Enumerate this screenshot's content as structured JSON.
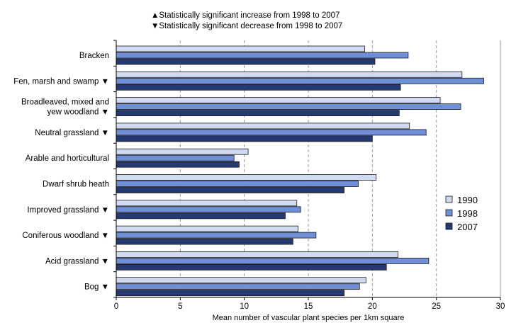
{
  "notes": {
    "increase": "▲Statistically significant increase from 1998 to 2007",
    "decrease": "▼Statistically significant decrease from 1998 to 2007"
  },
  "chart_data": {
    "type": "bar",
    "orientation": "horizontal",
    "categories": [
      [
        "Bracken"
      ],
      [
        "Fen, marsh and swamp ▼"
      ],
      [
        "Broadleaved, mixed  and",
        "yew woodland ▼"
      ],
      [
        "Neutral grassland ▼"
      ],
      [
        "Arable and horticultural"
      ],
      [
        "Dwarf shrub heath"
      ],
      [
        "Improved grassland ▼"
      ],
      [
        "Coniferous woodland ▼"
      ],
      [
        "Acid grassland ▼"
      ],
      [
        "Bog ▼"
      ]
    ],
    "series": [
      {
        "name": "1990",
        "color": "#d0daf0",
        "values": [
          19.4,
          27.0,
          25.3,
          22.9,
          10.3,
          20.3,
          14.1,
          14.2,
          22.0,
          19.5
        ]
      },
      {
        "name": "1998",
        "color": "#6f8fd6",
        "values": [
          22.8,
          28.7,
          26.9,
          24.2,
          9.2,
          18.9,
          14.4,
          15.6,
          24.4,
          19.0
        ]
      },
      {
        "name": "2007",
        "color": "#253a73",
        "values": [
          20.2,
          22.2,
          22.1,
          20.0,
          9.6,
          17.8,
          13.2,
          13.8,
          21.1,
          17.8
        ]
      }
    ],
    "xlabel": "Mean number of vascular plant species per 1km square",
    "ylabel": "",
    "xlim": [
      0,
      30
    ],
    "xticks": [
      "0",
      "5",
      "10",
      "15",
      "20",
      "25",
      "30"
    ],
    "grid": "vertical dashed",
    "legend_position": "right"
  }
}
